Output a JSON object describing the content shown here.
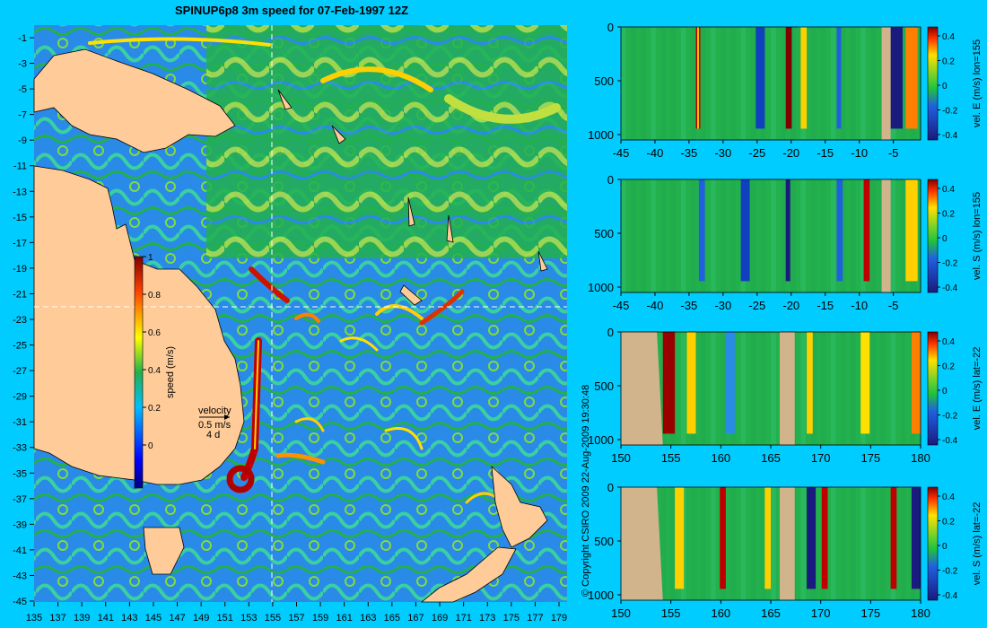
{
  "colors": {
    "background": "#00ccff",
    "land": "#ffcc99",
    "land_section": "#d2b48c",
    "guide_line": "#ffffff",
    "ocean_low": "#1e6fe0",
    "ocean_mid": "#22b14c"
  },
  "map": {
    "title": "SPINUP6p8 3m speed for 07-Feb-1997 12Z",
    "x_ticks": [
      "135",
      "137",
      "139",
      "141",
      "143",
      "145",
      "147",
      "149",
      "151",
      "153",
      "155",
      "157",
      "159",
      "161",
      "163",
      "165",
      "167",
      "169",
      "171",
      "173",
      "175",
      "177",
      "179"
    ],
    "y_ticks": [
      "-1",
      "-3",
      "-5",
      "-7",
      "-9",
      "-11",
      "-13",
      "-15",
      "-17",
      "-19",
      "-21",
      "-23",
      "-25",
      "-27",
      "-29",
      "-31",
      "-33",
      "-35",
      "-37",
      "-39",
      "-41",
      "-43",
      "-45"
    ],
    "guide_lon": 155,
    "guide_lat": -22,
    "colorbar": {
      "label": "speed (m/s)",
      "ticks": [
        "1",
        "0.8",
        "0.6",
        "0.4",
        "0.2",
        "0"
      ],
      "range": [
        0,
        1
      ]
    },
    "legend": {
      "title": "velocity",
      "speed": "0.5 m/s",
      "duration": "4 d"
    },
    "copyright": "© Copyright CSIRO 2009  22-Aug-2009 19:30:48"
  },
  "chart_data": [
    {
      "type": "heatmap",
      "name": "section-1",
      "ylabel": "vel. E (m/s) lon=155",
      "x_ticks": [
        "-45",
        "-40",
        "-35",
        "-30",
        "-25",
        "-20",
        "-15",
        "-10",
        "-5"
      ],
      "y_ticks": [
        "0",
        "500",
        "1000"
      ],
      "colorbar_ticks": [
        "0.4",
        "0.2",
        "0",
        "-0.2",
        "-0.4"
      ],
      "xlim": [
        -45,
        -1
      ],
      "ylim": [
        0,
        1050
      ]
    },
    {
      "type": "heatmap",
      "name": "section-2",
      "ylabel": "vel. S (m/s) lon=155",
      "x_ticks": [
        "-45",
        "-40",
        "-35",
        "-30",
        "-25",
        "-20",
        "-15",
        "-10",
        "-5"
      ],
      "y_ticks": [
        "0",
        "500",
        "1000"
      ],
      "colorbar_ticks": [
        "0.4",
        "0.2",
        "0",
        "-0.2",
        "-0.4"
      ],
      "xlim": [
        -45,
        -1
      ],
      "ylim": [
        0,
        1050
      ]
    },
    {
      "type": "heatmap",
      "name": "section-3",
      "ylabel": "vel. E (m/s) lat=-22",
      "x_ticks": [
        "150",
        "155",
        "160",
        "165",
        "170",
        "175",
        "180"
      ],
      "y_ticks": [
        "0",
        "500",
        "1000"
      ],
      "colorbar_ticks": [
        "0.4",
        "0.2",
        "0",
        "-0.2",
        "-0.4"
      ],
      "xlim": [
        150,
        180
      ],
      "ylim": [
        0,
        1050
      ]
    },
    {
      "type": "heatmap",
      "name": "section-4",
      "ylabel": "vel. S (m/s) lat=-22",
      "x_ticks": [
        "150",
        "155",
        "160",
        "165",
        "170",
        "175",
        "180"
      ],
      "y_ticks": [
        "0",
        "500",
        "1000"
      ],
      "colorbar_ticks": [
        "0.4",
        "0.2",
        "0",
        "-0.2",
        "-0.4"
      ],
      "xlim": [
        150,
        180
      ],
      "ylim": [
        0,
        1050
      ]
    }
  ]
}
